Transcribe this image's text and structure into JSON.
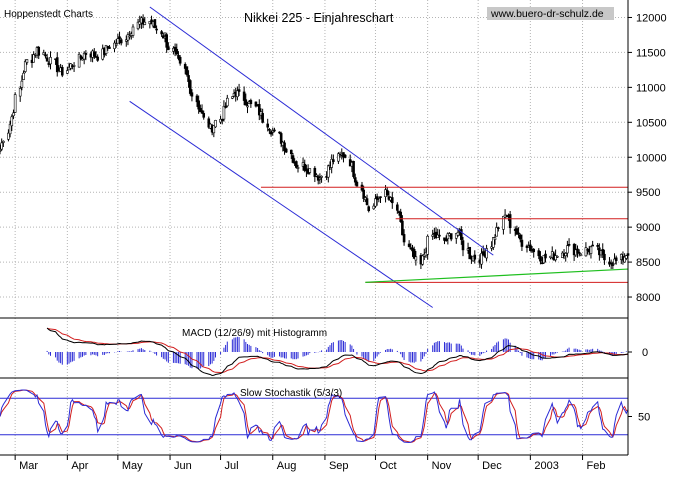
{
  "header": {
    "source": "Hoppenstedt Charts",
    "title": "Nikkei 225 - Einjahreschart",
    "url": "www.buero-dr-schulz.de"
  },
  "colors": {
    "background": "#ffffff",
    "grid": "#b4b4b4",
    "candle": "#000000",
    "trend_channel": "#2b2bd6",
    "horizontal_levels": "#d21e1e",
    "support_line": "#1fbf1f",
    "macd_line": "#000000",
    "macd_signal": "#d21e1e",
    "macd_histogram": "#2b2bd6",
    "stoch_k": "#2b2bd6",
    "stoch_d": "#d21e1e",
    "stoch_bands": "#2b2bd6",
    "url_box": "#c8c8c8"
  },
  "chart_data": [
    {
      "type": "candlestick",
      "name": "price",
      "title": "Nikkei 225 - Einjahreschart",
      "ylim": [
        7700,
        12250
      ],
      "yticks": [
        8000,
        8500,
        9000,
        9500,
        10000,
        10500,
        11000,
        11500,
        12000
      ],
      "ytick_labels": [
        "8000",
        "8500",
        "9000",
        "9500",
        "10000",
        "10500",
        "11000",
        "11500",
        "12000"
      ],
      "x_months": [
        "Mar",
        "Apr",
        "May",
        "Jun",
        "Jul",
        "Aug",
        "Sep",
        "Oct",
        "Nov",
        "Dec",
        "2003",
        "Feb"
      ],
      "approx_closes_weekly": [
        10100,
        10600,
        11300,
        11550,
        11400,
        11200,
        11350,
        11500,
        11450,
        11600,
        11700,
        11900,
        11950,
        11800,
        11500,
        11200,
        10750,
        10400,
        10600,
        10950,
        10800,
        10650,
        10400,
        10200,
        9900,
        9850,
        9700,
        9950,
        10050,
        9650,
        9250,
        9500,
        9300,
        8700,
        8450,
        8900,
        8800,
        8950,
        8600,
        8550,
        8850,
        9200,
        8850,
        8700,
        8550,
        8600,
        8700,
        8650,
        8700,
        8550,
        8500,
        8650
      ],
      "trend_channel": {
        "upper": [
          [
            "2002-05-20",
            12150
          ],
          [
            "2002-12-10",
            8600
          ]
        ],
        "lower": [
          [
            "2002-05-08",
            10800
          ],
          [
            "2002-11-04",
            7850
          ]
        ]
      },
      "horizontal_levels": [
        {
          "from": "2002-07-25",
          "to": "2003-02-28",
          "value": 9570
        },
        {
          "from": "2002-10-13",
          "to": "2003-02-28",
          "value": 9120
        },
        {
          "from": "2002-09-25",
          "to": "2003-02-28",
          "value": 8210
        }
      ],
      "support_line": [
        [
          "2002-09-25",
          8210
        ],
        [
          "2003-02-28",
          8400
        ]
      ]
    },
    {
      "type": "line",
      "name": "macd",
      "title": "MACD (12/26/9) mit Histogramm",
      "yticks": [
        0
      ],
      "ytick_labels": [
        "0"
      ],
      "series": [
        "MACD",
        "Signal",
        "Histogramm"
      ]
    },
    {
      "type": "line",
      "name": "stochastic",
      "title": "Slow Stochastik (5/3/3)",
      "ylim": [
        0,
        100
      ],
      "yticks": [
        50
      ],
      "ytick_labels": [
        "50"
      ],
      "bands": [
        20,
        80
      ],
      "series": [
        "%K",
        "%D"
      ]
    }
  ]
}
